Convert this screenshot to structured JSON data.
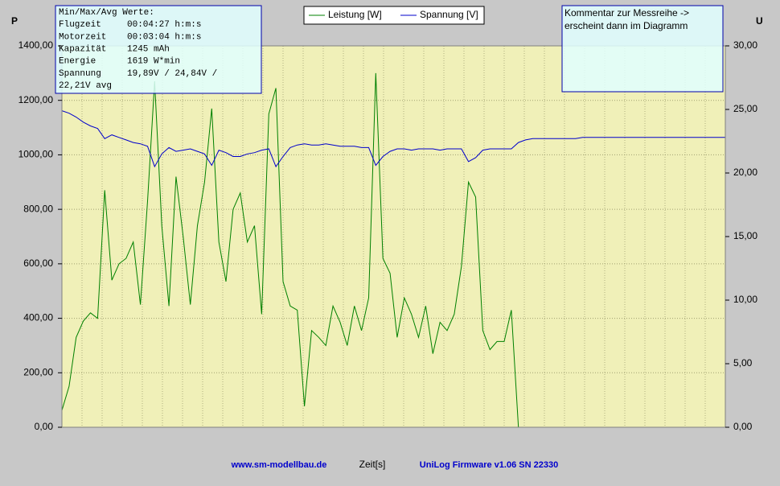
{
  "chart_data": {
    "type": "line",
    "x_label": "Zeit[s]",
    "y_label": "P",
    "y2_label": "U",
    "ylim": [
      0,
      1400
    ],
    "yticks": [
      {
        "value": 0,
        "label": "0,00"
      },
      {
        "value": 200,
        "label": "200,00"
      },
      {
        "value": 400,
        "label": "400,00"
      },
      {
        "value": 600,
        "label": "600,00"
      },
      {
        "value": 800,
        "label": "800,00"
      },
      {
        "value": 1000,
        "label": "1000,00"
      },
      {
        "value": 1200,
        "label": "1200,00"
      },
      {
        "value": 1400,
        "label": "1400,00"
      }
    ],
    "y2lim": [
      0,
      30
    ],
    "y2ticks": [
      {
        "value": 0,
        "label": "0,00"
      },
      {
        "value": 5,
        "label": "5,00"
      },
      {
        "value": 10,
        "label": "10,00"
      },
      {
        "value": 15,
        "label": "15,00"
      },
      {
        "value": 20,
        "label": "20,00"
      },
      {
        "value": 25,
        "label": "25,00"
      },
      {
        "value": 30,
        "label": "30,00"
      }
    ],
    "grid": true,
    "legend": "top",
    "series": [
      {
        "name": "Leistung [W]",
        "color": "#008000",
        "values": [
          62,
          150,
          330,
          390,
          420,
          400,
          870,
          540,
          600,
          620,
          680,
          450,
          830,
          1270,
          740,
          445,
          920,
          700,
          450,
          740,
          900,
          1170,
          680,
          535,
          800,
          860,
          680,
          740,
          415,
          1150,
          1245,
          535,
          445,
          430,
          77,
          355,
          330,
          300,
          445,
          385,
          300,
          445,
          355,
          475,
          1300,
          620,
          565,
          330,
          475,
          415,
          330,
          445,
          270,
          385,
          355,
          415,
          590,
          900,
          845,
          355,
          285,
          315,
          315,
          430,
          0,
          null,
          null,
          null,
          null,
          null,
          null,
          null,
          null,
          null,
          null,
          null,
          null,
          null,
          null,
          null,
          null,
          null,
          null,
          null,
          null,
          null,
          null,
          null,
          null,
          null,
          null,
          null,
          null,
          null
        ]
      },
      {
        "name": "Spannung [V]",
        "color": "#0000cc",
        "axis": "y2",
        "values": [
          24.9,
          24.7,
          24.4,
          24.0,
          23.7,
          23.5,
          22.7,
          23.0,
          22.8,
          22.6,
          22.4,
          22.3,
          22.1,
          20.5,
          21.5,
          22.0,
          21.7,
          21.8,
          21.9,
          21.7,
          21.5,
          20.6,
          21.8,
          21.6,
          21.3,
          21.3,
          21.5,
          21.6,
          21.8,
          21.9,
          20.5,
          21.3,
          22.0,
          22.2,
          22.3,
          22.2,
          22.2,
          22.3,
          22.2,
          22.1,
          22.1,
          22.1,
          22.0,
          22.0,
          20.6,
          21.3,
          21.7,
          21.9,
          21.9,
          21.8,
          21.9,
          21.9,
          21.9,
          21.8,
          21.9,
          21.9,
          21.9,
          20.9,
          21.2,
          21.8,
          21.9,
          21.9,
          21.9,
          21.9,
          22.4,
          22.6,
          22.7,
          22.7,
          22.7,
          22.7,
          22.7,
          22.7,
          22.7,
          22.8,
          22.8,
          22.8,
          22.8,
          22.8,
          22.8,
          22.8,
          22.8,
          22.8,
          22.8,
          22.8,
          22.8,
          22.8,
          22.8,
          22.8,
          22.8,
          22.8,
          22.8,
          22.8,
          22.8,
          22.8
        ]
      }
    ],
    "info_box": {
      "rows": [
        [
          "Min/Max/Avg Werte:"
        ],
        [
          "Flugzeit",
          "00:04:27 h:m:s"
        ],
        [
          "Motorzeit",
          "00:03:04 h:m:s"
        ],
        [
          "Kapazität",
          "1245 mAh"
        ],
        [
          "Energie",
          "1619 W*min"
        ],
        [
          "Spannung",
          "19,89V / 24,84V /"
        ],
        [
          "22,21V avg"
        ]
      ]
    },
    "comment": [
      "Kommentar zur Messreihe ->",
      "erscheint dann im Diagramm"
    ],
    "footer_left": "www.sm-modellbau.de",
    "footer_right": "UniLog Firmware v1.06 SN 22330"
  }
}
